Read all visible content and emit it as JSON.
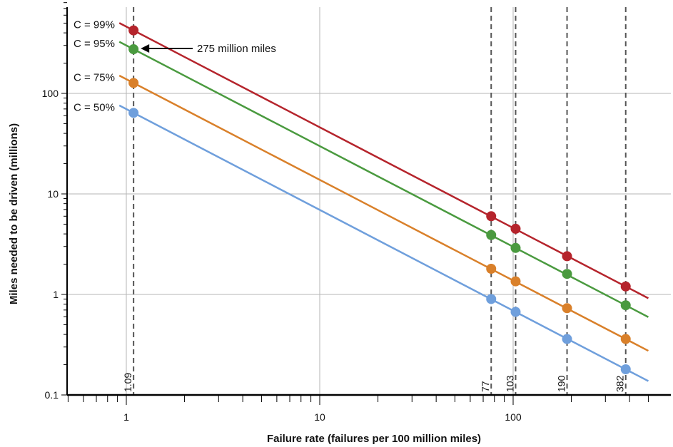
{
  "chart_data": {
    "type": "line",
    "title": "",
    "xlabel": "Failure rate (failures per 100 million miles)",
    "ylabel": "Miles needed to be driven (millions)",
    "x_scale": "log",
    "y_scale": "log",
    "xlim": [
      0.5,
      550
    ],
    "ylim": [
      0.1,
      1000
    ],
    "x_ticks": [
      1,
      10,
      100
    ],
    "x_tick_labels": [
      "1",
      "10",
      "100"
    ],
    "y_ticks": [
      0.1,
      1,
      10,
      100
    ],
    "y_tick_labels": [
      "0.1",
      "1",
      "10",
      "100"
    ],
    "grid": true,
    "reference_lines": [
      {
        "x": 1.09,
        "label": "1.09"
      },
      {
        "x": 77,
        "label": "77"
      },
      {
        "x": 103,
        "label": "103"
      },
      {
        "x": 190,
        "label": "190"
      },
      {
        "x": 382,
        "label": "382"
      }
    ],
    "series": [
      {
        "name": "C = 99%",
        "color": "#b5242c",
        "line_x": [
          0.92,
          500
        ],
        "points": [
          [
            1.09,
            423
          ],
          [
            77,
            6.0
          ],
          [
            103,
            4.5
          ],
          [
            190,
            2.4
          ],
          [
            382,
            1.2
          ]
        ]
      },
      {
        "name": "C = 95%",
        "color": "#4a9a3f",
        "line_x": [
          0.92,
          500
        ],
        "points": [
          [
            1.09,
            275
          ],
          [
            77,
            3.9
          ],
          [
            103,
            2.9
          ],
          [
            190,
            1.6
          ],
          [
            382,
            0.78
          ]
        ]
      },
      {
        "name": "C = 75%",
        "color": "#d9802a",
        "line_x": [
          0.92,
          500
        ],
        "points": [
          [
            1.09,
            127
          ],
          [
            77,
            1.8
          ],
          [
            103,
            1.35
          ],
          [
            190,
            0.73
          ],
          [
            382,
            0.36
          ]
        ]
      },
      {
        "name": "C = 50%",
        "color": "#6f9fdc",
        "line_x": [
          0.92,
          500
        ],
        "points": [
          [
            1.09,
            64
          ],
          [
            77,
            0.9
          ],
          [
            103,
            0.67
          ],
          [
            190,
            0.36
          ],
          [
            382,
            0.18
          ]
        ]
      }
    ],
    "annotations": [
      {
        "text": "275 million miles",
        "x": 1.09,
        "y": 275
      }
    ]
  }
}
